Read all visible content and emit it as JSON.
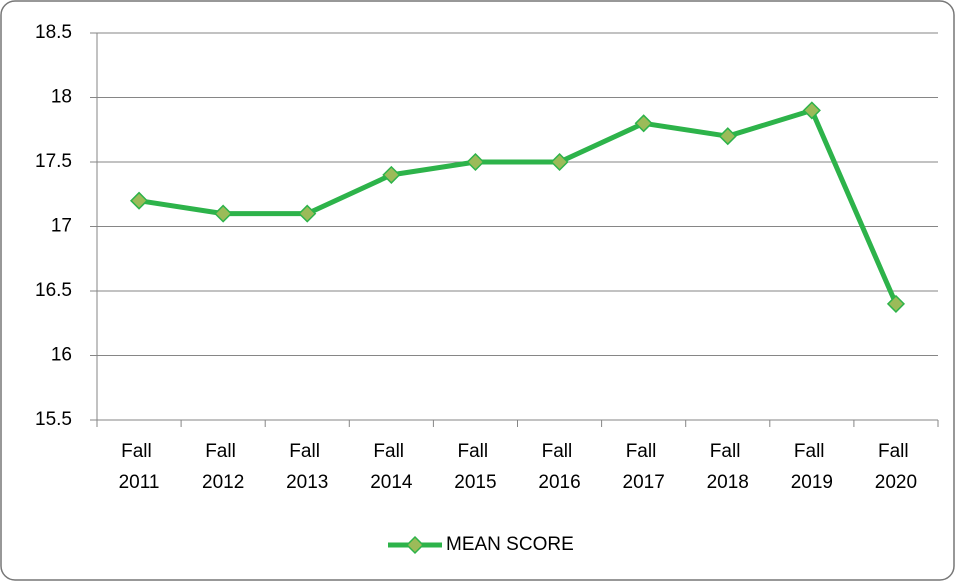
{
  "chart_data": {
    "type": "line",
    "categories": [
      "Fall 2011",
      "Fall 2012",
      "Fall 2013",
      "Fall 2014",
      "Fall 2015",
      "Fall 2016",
      "Fall 2017",
      "Fall 2018",
      "Fall 2019",
      "Fall 2020"
    ],
    "series": [
      {
        "name": "MEAN SCORE",
        "color": "#2db34a",
        "marker_color": "#9bbb59",
        "values": [
          17.2,
          17.1,
          17.1,
          17.4,
          17.5,
          17.5,
          17.8,
          17.7,
          17.9,
          16.4
        ]
      }
    ],
    "ylim": [
      15.5,
      18.5
    ],
    "yticks": [
      15.5,
      16,
      16.5,
      17,
      17.5,
      18,
      18.5
    ],
    "grid": true,
    "legend": "bottom"
  }
}
